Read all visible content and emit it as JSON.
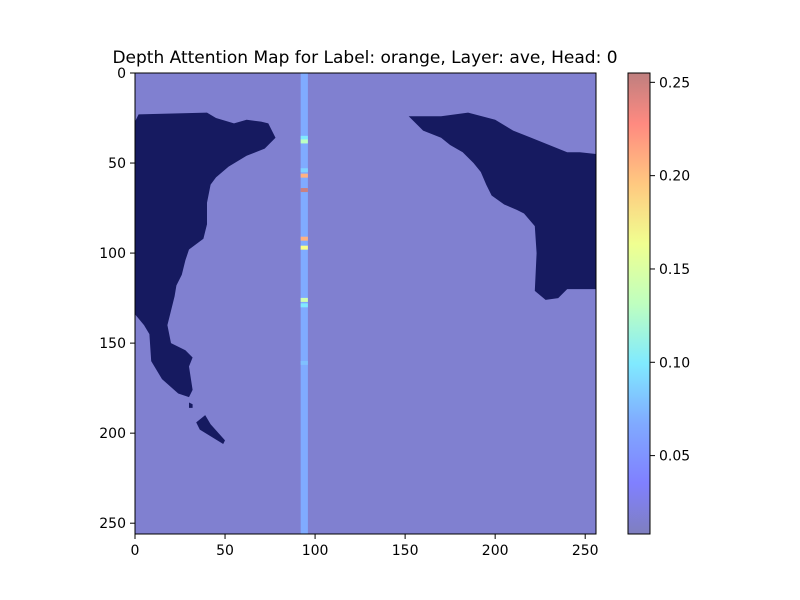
{
  "chart_data": [
    {
      "type": "heatmap",
      "title": "Depth Attention Map for Label: orange, Layer: ave, Head: 0",
      "xlabel": "",
      "ylabel": "",
      "xlim": [
        0,
        256
      ],
      "ylim": [
        256,
        0
      ],
      "x_ticks": [
        0,
        50,
        100,
        150,
        200,
        250
      ],
      "y_ticks": [
        0,
        50,
        100,
        150,
        200,
        250
      ],
      "x_tick_labels": [
        "0",
        "50",
        "100",
        "150",
        "200",
        "250"
      ],
      "y_tick_labels": [
        "0",
        "50",
        "100",
        "150",
        "200",
        "250"
      ],
      "grid": false,
      "background_color": "#8080d0",
      "background_value": 0.01,
      "attention_column": {
        "x_range": [
          92,
          96
        ],
        "base_value": 0.06,
        "hot_cells": [
          {
            "y": 36,
            "value": 0.09
          },
          {
            "y": 38,
            "value": 0.13
          },
          {
            "y": 54,
            "value": 0.08
          },
          {
            "y": 57,
            "value": 0.2
          },
          {
            "y": 65,
            "value": 0.25
          },
          {
            "y": 92,
            "value": 0.2
          },
          {
            "y": 97,
            "value": 0.16
          },
          {
            "y": 126,
            "value": 0.14
          },
          {
            "y": 129,
            "value": 0.09
          },
          {
            "y": 161,
            "value": 0.07
          }
        ]
      },
      "dark_regions": [
        {
          "name": "left-dark-region",
          "color": "#161a60",
          "points": [
            [
              0,
              27
            ],
            [
              2,
              23
            ],
            [
              40,
              22
            ],
            [
              45,
              25
            ],
            [
              55,
              28
            ],
            [
              62,
              26
            ],
            [
              70,
              27
            ],
            [
              74,
              28
            ],
            [
              78,
              36
            ],
            [
              72,
              42
            ],
            [
              62,
              46
            ],
            [
              52,
              52
            ],
            [
              45,
              58
            ],
            [
              42,
              62
            ],
            [
              40,
              72
            ],
            [
              40,
              84
            ],
            [
              38,
              92
            ],
            [
              30,
              98
            ],
            [
              28,
              104
            ],
            [
              26,
              112
            ],
            [
              23,
              118
            ],
            [
              22,
              124
            ],
            [
              20,
              132
            ],
            [
              18,
              140
            ],
            [
              20,
              150
            ],
            [
              28,
              154
            ],
            [
              32,
              158
            ],
            [
              30,
              163
            ],
            [
              32,
              176
            ],
            [
              30,
              180
            ],
            [
              24,
              178
            ],
            [
              15,
              170
            ],
            [
              9,
              160
            ],
            [
              8,
              145
            ],
            [
              5,
              140
            ],
            [
              0,
              134
            ]
          ]
        },
        {
          "name": "left-dark-dot",
          "color": "#161a60",
          "points": [
            [
              30,
              183
            ],
            [
              32,
              184
            ],
            [
              32,
              186
            ],
            [
              30,
              186
            ]
          ]
        },
        {
          "name": "left-dark-spur",
          "color": "#161a60",
          "points": [
            [
              34,
              194
            ],
            [
              39,
              190
            ],
            [
              42,
              195
            ],
            [
              50,
              204
            ],
            [
              49,
              206
            ],
            [
              36,
              198
            ]
          ]
        },
        {
          "name": "right-dark-region",
          "color": "#161a60",
          "points": [
            [
              152,
              24
            ],
            [
              170,
              24
            ],
            [
              185,
              22
            ],
            [
              200,
              26
            ],
            [
              210,
              32
            ],
            [
              220,
              36
            ],
            [
              230,
              40
            ],
            [
              240,
              44
            ],
            [
              247,
              44
            ],
            [
              256,
              45
            ],
            [
              256,
              120
            ],
            [
              240,
              120
            ],
            [
              235,
              125
            ],
            [
              228,
              126
            ],
            [
              222,
              121
            ],
            [
              223,
              100
            ],
            [
              222,
              85
            ],
            [
              216,
              78
            ],
            [
              212,
              76
            ],
            [
              205,
              73
            ],
            [
              198,
              68
            ],
            [
              195,
              62
            ],
            [
              192,
              55
            ],
            [
              188,
              50
            ],
            [
              182,
              44
            ],
            [
              175,
              40
            ],
            [
              170,
              36
            ],
            [
              160,
              32
            ]
          ]
        }
      ],
      "colorbar": {
        "colormap": "jet",
        "alpha": 0.5,
        "min": 0.008,
        "max": 0.255,
        "ticks": [
          0.05,
          0.1,
          0.15,
          0.2,
          0.25
        ],
        "tick_labels": [
          "0.05",
          "0.10",
          "0.15",
          "0.20",
          "0.25"
        ]
      }
    }
  ]
}
